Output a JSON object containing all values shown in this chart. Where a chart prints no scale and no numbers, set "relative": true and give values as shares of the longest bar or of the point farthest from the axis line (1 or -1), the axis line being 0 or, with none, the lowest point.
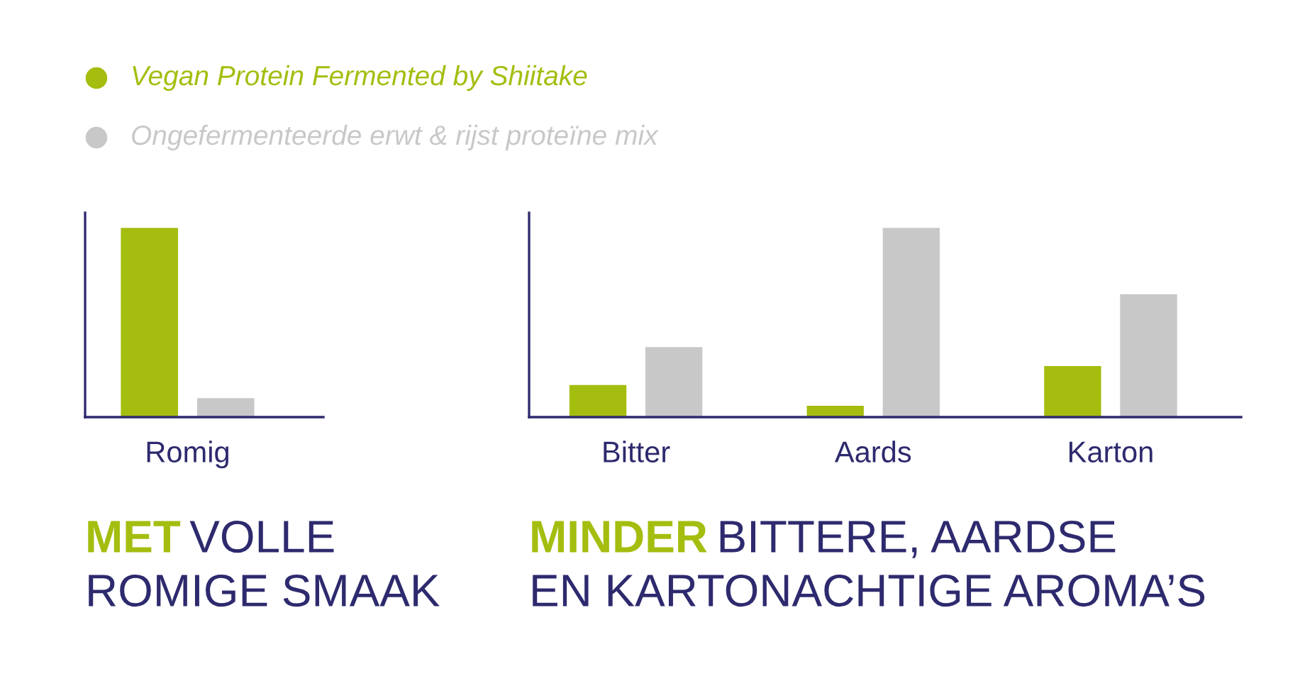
{
  "chart_data": [
    {
      "type": "bar",
      "title": "MET VOLLE\nROMIGE SMAAK",
      "categories": [
        "Romig"
      ],
      "relative": true,
      "legend": "top",
      "series": [
        {
          "name": "Vegan Protein Fermented by Shiitake",
          "color": "#a5bd0f",
          "values": [
            1
          ]
        },
        {
          "name": "Ongefermenteerde erwt & rijst proteïne mix",
          "color": "#c8c8c8",
          "values": [
            0.1
          ]
        }
      ]
    },
    {
      "type": "bar",
      "title": "MINDER BITTERE, AARDSE\nEN KARTONACHTIGE AROMA’S",
      "categories": [
        "Bitter",
        "Aards",
        "Karton"
      ],
      "relative": true,
      "series": [
        {
          "color": "#a5bd0f",
          "values": [
            0.17,
            0.06,
            0.27
          ]
        },
        {
          "color": "#c8c8c8",
          "values": [
            0.37,
            1,
            0.65
          ]
        }
      ]
    }
  ]
}
